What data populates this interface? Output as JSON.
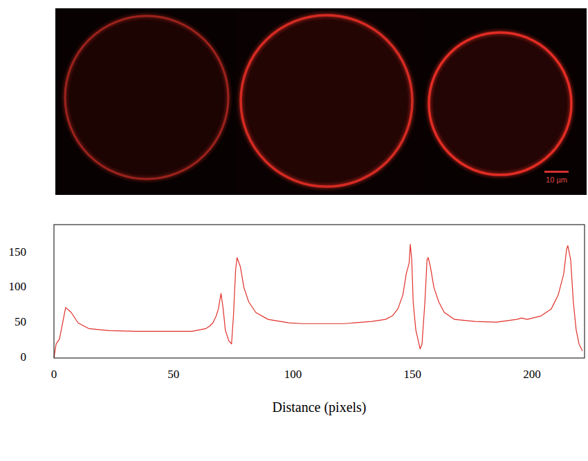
{
  "chart_data": {
    "type": "line",
    "x_label": "Distance (pixels)",
    "x": [
      0,
      0.9,
      2.3,
      4.9,
      7.2,
      10.1,
      14.5,
      23.1,
      34.7,
      46.2,
      57.8,
      60.7,
      63.6,
      65.0,
      66.5,
      67.9,
      68.8,
      69.9,
      70.8,
      71.7,
      73.1,
      74.3,
      75.1,
      76.0,
      76.6,
      78.0,
      79.5,
      81.5,
      84.4,
      89.6,
      98.3,
      104.0,
      112.7,
      121.4,
      132.9,
      138.7,
      141.6,
      143.9,
      146.0,
      147.4,
      148.6,
      149.1,
      149.7,
      150.3,
      151.4,
      153.2,
      154.0,
      155.2,
      156.1,
      156.6,
      157.5,
      159.0,
      161.0,
      163.3,
      167.6,
      176.3,
      185.0,
      193.6,
      195.7,
      198.0,
      203.8,
      208.1,
      211.0,
      213.3,
      214.5,
      215.0,
      216.2,
      217.3,
      218.5,
      219.7,
      221.1
    ],
    "values": [
      0,
      20,
      27,
      72,
      65,
      50,
      42,
      39,
      38,
      38,
      38,
      40,
      42,
      45,
      50,
      60,
      70,
      92,
      70,
      40,
      25,
      20,
      60,
      125,
      143,
      130,
      100,
      80,
      65,
      55,
      50,
      49,
      49,
      49,
      52,
      55,
      60,
      70,
      90,
      120,
      135,
      162,
      140,
      80,
      40,
      13,
      20,
      80,
      140,
      143,
      130,
      100,
      80,
      65,
      55,
      52,
      51,
      55,
      57,
      55,
      60,
      70,
      90,
      120,
      155,
      160,
      140,
      80,
      40,
      20,
      10
    ],
    "color": "#e0302a",
    "line_style": "solid",
    "grid": false,
    "xlim": [
      0,
      222
    ],
    "xticks": [
      0,
      50,
      100,
      150,
      200
    ],
    "ylim": [
      0,
      190
    ],
    "yticks": [
      0,
      50,
      100,
      150
    ]
  },
  "micrograph": {
    "scale_bar_label": "10 µm"
  }
}
